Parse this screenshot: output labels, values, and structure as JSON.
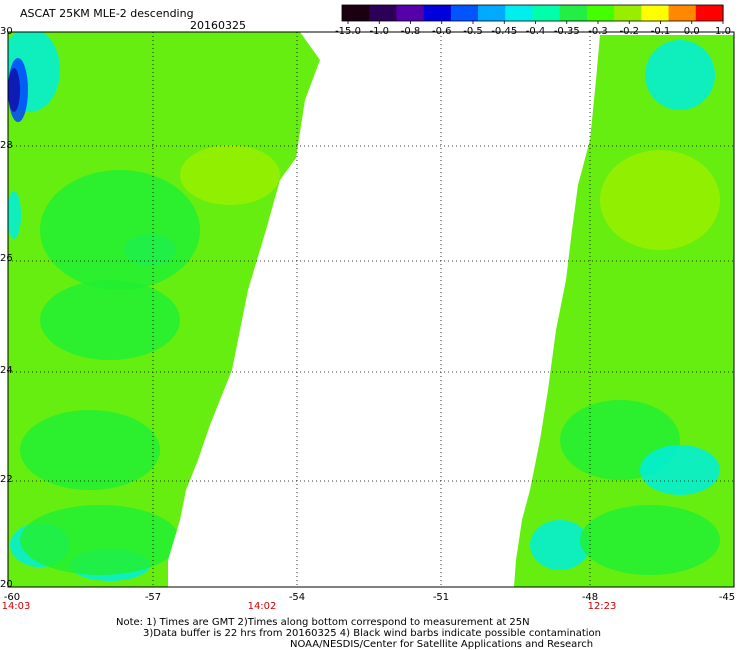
{
  "header": {
    "title": "ASCAT 25KM MLE-2 descending",
    "date": "20160325"
  },
  "colorbar": {
    "ticks": [
      "-15.0",
      "-1.0",
      "-0.8",
      "-0.6",
      "-0.5",
      "-0.45",
      "-0.4",
      "-0.35",
      "-0.3",
      "-0.2",
      "-0.1",
      "0.0",
      "1.0"
    ],
    "colors": [
      "#1a0010",
      "#2d0057",
      "#5500aa",
      "#0000dd",
      "#0055ff",
      "#00aaff",
      "#00eeee",
      "#00ffaa",
      "#22ee44",
      "#44ff00",
      "#99ee00",
      "#ffff00",
      "#ff8800",
      "#ff0000"
    ]
  },
  "map": {
    "lat_labels": [
      "30",
      "28",
      "26",
      "24",
      "22",
      "20"
    ],
    "lon_labels": [
      "-60",
      "-57",
      "-54",
      "-51",
      "-48",
      "-45"
    ],
    "time_labels": [
      "14:03",
      "14:02",
      "12:23"
    ],
    "swath_colors": {
      "dominant": "#66ee11",
      "green": "#22ee33",
      "yellowgreen": "#99ee00",
      "cyan": "#00eedd",
      "blue": "#0044ff",
      "dark_blue": "#1111aa"
    }
  },
  "footer": {
    "note_line1": "Note: 1) Times are GMT 2)Times along bottom correspond to measurement at 25N",
    "note_line2": "3)Data buffer is 22 hrs from 20160325 4) Black wind barbs indicate possible contamination",
    "note_line3": "NOAA/NESDIS/Center for Satellite Applications and Research"
  }
}
